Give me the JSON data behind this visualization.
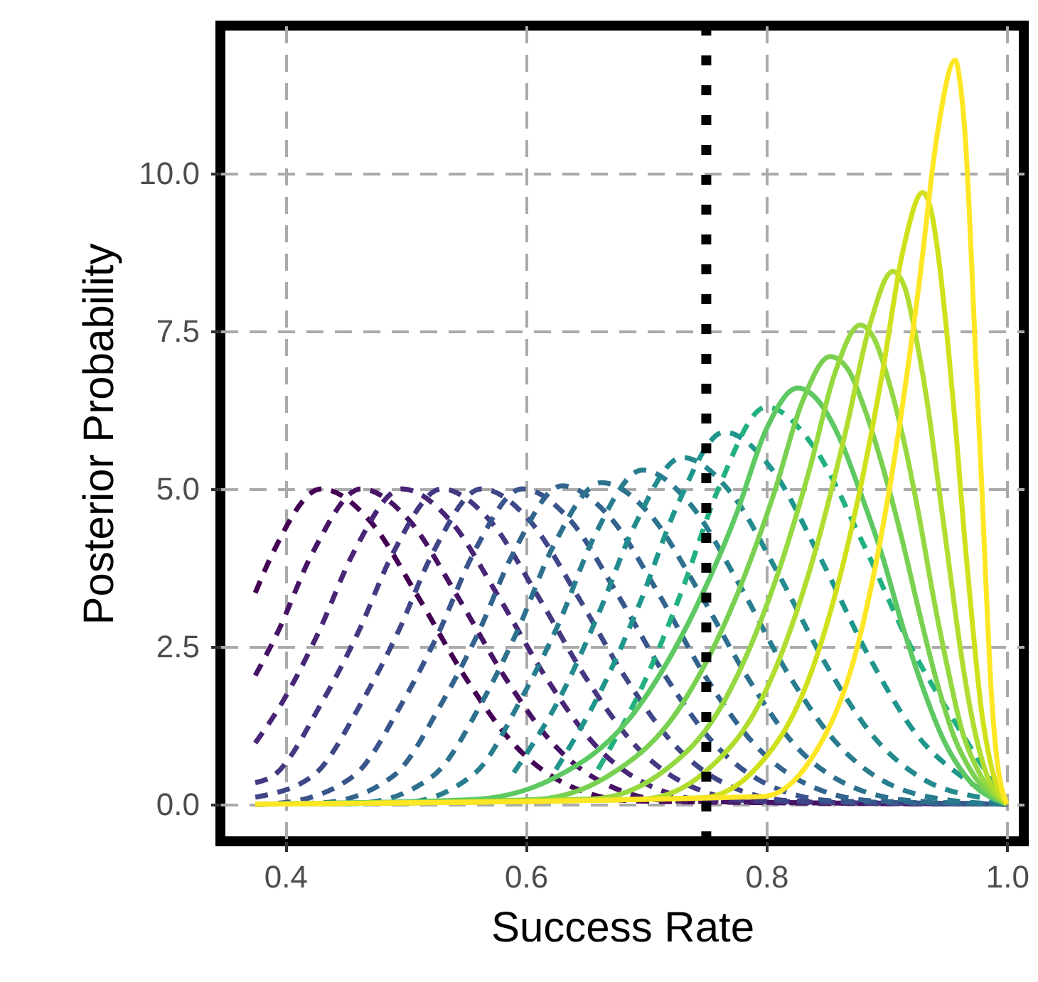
{
  "chart_data": {
    "type": "line",
    "xlabel": "Success Rate",
    "ylabel": "Posterior Probability",
    "xlim": [
      0.346,
      1.014
    ],
    "ylim": [
      -0.59,
      12.35
    ],
    "xticks": [
      0.4,
      0.6,
      0.8,
      {
        "value": 1,
        "label": "1.0"
      }
    ],
    "yticks": [
      {
        "value": 0,
        "label": "0.0"
      },
      2.5,
      {
        "value": 5,
        "label": "5.0"
      },
      7.5,
      {
        "value": 10,
        "label": "10.0"
      }
    ],
    "grid": true,
    "marker": "none",
    "ref_lines": [
      {
        "axis": "x",
        "value": 0.75,
        "color": "#000000",
        "line_style": "dotted"
      }
    ],
    "series": [
      {
        "color": "#440154",
        "line_style": "dashed",
        "x": [
          0.375,
          0.39,
          0.43,
          0.47,
          0.51,
          0.55,
          0.59,
          0.63,
          0.69,
          1.0
        ],
        "values": [
          3.35,
          4.0,
          5,
          4.5,
          3.3,
          2.0,
          0.95,
          0.35,
          0.05,
          0
        ]
      },
      {
        "color": "#471365",
        "line_style": "dashed",
        "x": [
          0.375,
          0.393,
          0.423,
          0.463,
          0.503,
          0.543,
          0.583,
          0.623,
          0.663,
          0.723,
          1.0
        ],
        "values": [
          2.04,
          2.7,
          4.0,
          5,
          4.5,
          3.3,
          2.0,
          0.95,
          0.35,
          0.05,
          0
        ]
      },
      {
        "color": "#482576",
        "line_style": "dashed",
        "x": [
          0.375,
          0.397,
          0.427,
          0.457,
          0.497,
          0.537,
          0.577,
          0.617,
          0.657,
          0.697,
          0.757,
          1.0
        ],
        "values": [
          0.97,
          1.6,
          2.7,
          4.0,
          5,
          4.5,
          3.3,
          2.0,
          0.95,
          0.35,
          0.05,
          0
        ]
      },
      {
        "color": "#453781",
        "line_style": "dashed",
        "x": [
          0.375,
          0.39,
          0.43,
          0.46,
          0.49,
          0.53,
          0.57,
          0.61,
          0.65,
          0.69,
          0.73,
          0.79,
          1.0
        ],
        "values": [
          0.34,
          0.45,
          1.6,
          2.7,
          4.0,
          5,
          4.5,
          3.3,
          2.0,
          0.95,
          0.35,
          0.05,
          0
        ]
      },
      {
        "color": "#3f4788",
        "line_style": "dashed",
        "x": [
          0.375,
          0.423,
          0.463,
          0.493,
          0.523,
          0.563,
          0.603,
          0.643,
          0.683,
          0.723,
          0.763,
          0.823,
          1.0
        ],
        "values": [
          0.11,
          0.45,
          1.6,
          2.7,
          4.0,
          5,
          4.5,
          3.3,
          2.0,
          0.95,
          0.35,
          0.05,
          0
        ]
      },
      {
        "color": "#39558c",
        "line_style": "dashed",
        "x": [
          0.375,
          0.397,
          0.457,
          0.497,
          0.527,
          0.557,
          0.597,
          0.637,
          0.677,
          0.717,
          0.757,
          0.797,
          0.857,
          1.0
        ],
        "values": [
          0,
          0.02,
          0.45,
          1.6,
          2.7,
          4.0,
          5,
          4.5,
          3.3,
          2.0,
          0.95,
          0.35,
          0.05,
          0
        ]
      },
      {
        "color": "#32648e",
        "line_style": "dashed",
        "x": [
          0.375,
          0.43,
          0.49,
          0.53,
          0.56,
          0.59,
          0.63,
          0.67,
          0.71,
          0.75,
          0.79,
          0.83,
          0.89,
          1.0
        ],
        "values": [
          0,
          0.02,
          0.45,
          1.6,
          2.7,
          4.0,
          5.05,
          4.55,
          3.35,
          2.0,
          0.95,
          0.35,
          0.05,
          0
        ]
      },
      {
        "color": "#2d718e",
        "line_style": "dashed",
        "x": [
          0.375,
          0.463,
          0.523,
          0.563,
          0.593,
          0.623,
          0.663,
          0.703,
          0.743,
          0.783,
          0.823,
          0.863,
          0.923,
          1.0
        ],
        "values": [
          0,
          0.02,
          0.45,
          1.6,
          2.75,
          4.1,
          5.1,
          4.6,
          3.4,
          2.05,
          0.95,
          0.35,
          0.05,
          0
        ]
      },
      {
        "color": "#287d8e",
        "line_style": "dashed",
        "x": [
          0.375,
          0.497,
          0.557,
          0.597,
          0.627,
          0.657,
          0.697,
          0.737,
          0.777,
          0.817,
          0.857,
          0.897,
          0.957,
          1.0
        ],
        "values": [
          0,
          0.02,
          0.48,
          1.7,
          2.85,
          4.25,
          5.3,
          4.75,
          3.5,
          2.1,
          1.0,
          0.37,
          0.05,
          0
        ]
      },
      {
        "color": "#238a8d",
        "line_style": "dashed",
        "x": [
          0.59,
          0.63,
          0.66,
          0.69,
          0.73,
          0.77,
          0.81,
          0.85,
          0.89,
          0.93,
          0.99,
          1.0
        ],
        "values": [
          0.5,
          1.75,
          3.0,
          4.4,
          5.5,
          4.95,
          3.65,
          2.2,
          1.05,
          0.4,
          0.05,
          0
        ]
      },
      {
        "color": "#1f968b",
        "line_style": "dashed",
        "x": [
          0.625,
          0.665,
          0.695,
          0.725,
          0.765,
          0.805,
          0.845,
          0.885,
          0.925,
          0.965,
          1.0
        ],
        "values": [
          0.55,
          1.9,
          3.2,
          4.7,
          5.9,
          5.3,
          3.9,
          2.35,
          1.1,
          0.4,
          0
        ]
      },
      {
        "color": "#22b07f",
        "line_style": "dashed",
        "x": [
          0.66,
          0.7,
          0.73,
          0.76,
          0.8,
          0.84,
          0.88,
          0.92,
          0.96,
          1.0
        ],
        "values": [
          0.55,
          2.0,
          3.4,
          5.0,
          6.3,
          5.65,
          4.15,
          2.5,
          1.2,
          0
        ]
      },
      {
        "color": "#5ec962",
        "line_style": "solid",
        "x": [
          0.375,
          0.554,
          0.622,
          0.69,
          0.741,
          0.775,
          0.8,
          0.826,
          0.843,
          0.861,
          0.878,
          0.896,
          0.913,
          0.93,
          0.948,
          0.965,
          1.0
        ],
        "values": [
          0,
          0.07,
          0.4,
          1.45,
          3.1,
          4.6,
          5.95,
          6.6,
          6.4,
          5.8,
          4.95,
          3.96,
          2.84,
          1.85,
          0.99,
          0.46,
          0
        ]
      },
      {
        "color": "#7ad151",
        "line_style": "solid",
        "x": [
          0.375,
          0.605,
          0.667,
          0.729,
          0.776,
          0.807,
          0.83,
          0.853,
          0.868,
          0.882,
          0.897,
          0.912,
          0.927,
          0.941,
          0.956,
          0.971,
          1.0
        ],
        "values": [
          0,
          0.07,
          0.43,
          1.56,
          3.34,
          4.97,
          6.39,
          7.1,
          6.89,
          6.25,
          5.33,
          4.26,
          3.05,
          1.99,
          1.07,
          0.5,
          0
        ]
      },
      {
        "color": "#95d840",
        "line_style": "solid",
        "x": [
          0.375,
          0.654,
          0.71,
          0.766,
          0.808,
          0.836,
          0.857,
          0.878,
          0.89,
          0.902,
          0.915,
          0.927,
          0.939,
          0.951,
          0.963,
          0.976,
          1.0
        ],
        "values": [
          0,
          0.08,
          0.46,
          1.67,
          3.57,
          5.32,
          6.84,
          7.6,
          7.37,
          6.69,
          5.7,
          4.56,
          3.27,
          2.13,
          1.14,
          0.53,
          0
        ]
      },
      {
        "color": "#b0dd2f",
        "line_style": "solid",
        "x": [
          0.375,
          0.697,
          0.749,
          0.801,
          0.84,
          0.866,
          0.886,
          0.905,
          0.915,
          0.924,
          0.934,
          0.943,
          0.953,
          0.962,
          0.972,
          0.981,
          1.0
        ],
        "values": [
          0,
          0.08,
          0.51,
          1.86,
          3.97,
          5.92,
          7.6,
          8.45,
          8.2,
          7.44,
          6.34,
          5.07,
          3.63,
          2.37,
          1.27,
          0.59,
          0
        ]
      },
      {
        "color": "#d0e11c",
        "line_style": "solid",
        "x": [
          0.375,
          0.746,
          0.792,
          0.838,
          0.873,
          0.896,
          0.913,
          0.93,
          0.937,
          0.944,
          0.951,
          0.958,
          0.965,
          0.972,
          0.979,
          0.986,
          1.0
        ],
        "values": [
          0,
          0.1,
          0.58,
          2.13,
          4.56,
          6.79,
          8.73,
          9.7,
          9.41,
          8.54,
          7.28,
          5.82,
          4.17,
          2.72,
          1.46,
          0.68,
          0
        ]
      },
      {
        "color": "#fde725",
        "line_style": "solid",
        "x": [
          0.375,
          0.797,
          0.837,
          0.877,
          0.907,
          0.927,
          0.942,
          0.957,
          0.961,
          0.966,
          0.97,
          0.974,
          0.979,
          0.983,
          0.987,
          0.991,
          1.0
        ],
        "values": [
          0,
          0.12,
          0.71,
          2.6,
          5.55,
          8.26,
          10.62,
          11.8,
          11.45,
          10.38,
          8.85,
          7.08,
          5.07,
          3.3,
          1.77,
          0.83,
          0
        ]
      }
    ]
  }
}
